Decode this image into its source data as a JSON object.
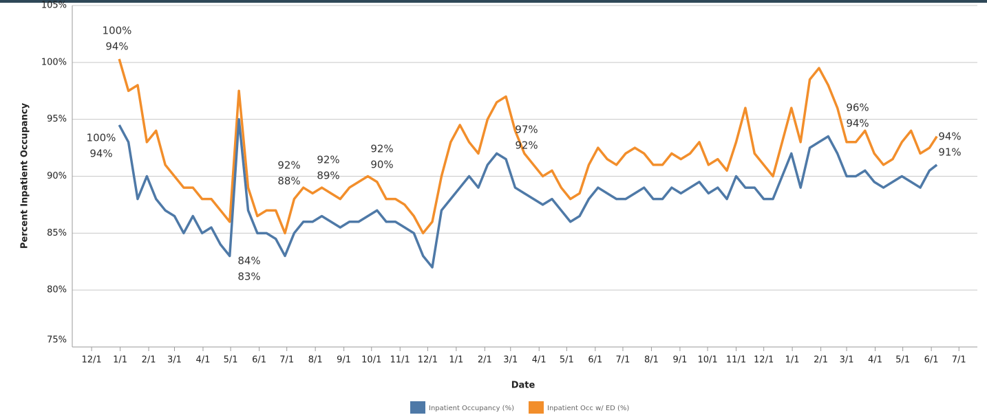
{
  "chart_data": {
    "type": "line",
    "x_label": "Date",
    "y_label": "Percent Inpatient Occupancy",
    "x": [
      30,
      40,
      50,
      60,
      70,
      80,
      90,
      100,
      110,
      120,
      130,
      140,
      150,
      160,
      170,
      180,
      190,
      200,
      210,
      220,
      230,
      240,
      250,
      260,
      270,
      280,
      290,
      300,
      310,
      320,
      330,
      340,
      350,
      360,
      370,
      380,
      390,
      400,
      410,
      420,
      430,
      440,
      450,
      460,
      470,
      480,
      490,
      500,
      510,
      520,
      530,
      540,
      550,
      560,
      570,
      580,
      590,
      600,
      610,
      620,
      630,
      640,
      650,
      660,
      670,
      680,
      690,
      700,
      710,
      720,
      730,
      740,
      750,
      760,
      770,
      780,
      790,
      800,
      810,
      820,
      830,
      840,
      850,
      860,
      870,
      880,
      890,
      900,
      910,
      918
    ],
    "series": [
      {
        "name": "Inpatient Occupancy (%)",
        "color": "#4e79a7",
        "values": [
          94.5,
          93,
          88,
          90,
          88,
          87,
          86.5,
          85,
          86.5,
          85,
          85.5,
          84,
          83,
          95,
          87,
          85,
          85,
          84.5,
          83,
          85,
          86,
          86,
          86.5,
          86,
          85.5,
          86,
          86,
          86.5,
          87,
          86,
          86,
          85.5,
          85,
          83,
          82,
          87,
          88,
          89,
          90,
          89,
          91,
          92,
          91.5,
          89,
          88.5,
          88,
          87.5,
          88,
          87,
          86,
          86.5,
          88,
          89,
          88.5,
          88,
          88,
          88.5,
          89,
          88,
          88,
          89,
          88.5,
          89,
          89.5,
          88.5,
          89,
          88,
          90,
          89,
          89,
          88,
          88,
          90,
          92,
          89,
          92.5,
          93,
          93.5,
          92,
          90,
          90,
          90.5,
          89.5,
          89,
          89.5,
          90,
          89.5,
          89,
          90.5,
          91
        ]
      },
      {
        "name": "Inpatient Occ w/ ED (%)",
        "color": "#f28e2b",
        "values": [
          100.3,
          97.5,
          98,
          93,
          94,
          91,
          90,
          89,
          89,
          88,
          88,
          87,
          86,
          97.5,
          89,
          86.5,
          87,
          87,
          85,
          88,
          89,
          88.5,
          89,
          88.5,
          88,
          89,
          89.5,
          90,
          89.5,
          88,
          88,
          87.5,
          86.5,
          85,
          86,
          90,
          93,
          94.5,
          93,
          92,
          95,
          96.5,
          97,
          94,
          92,
          91,
          90,
          90.5,
          89,
          88,
          88.5,
          91,
          92.5,
          91.5,
          91,
          92,
          92.5,
          92,
          91,
          91,
          92,
          91.5,
          92,
          93,
          91,
          91.5,
          90.5,
          93,
          96,
          92,
          91,
          90,
          93,
          96,
          93,
          98.5,
          99.5,
          98,
          96,
          93,
          93,
          94,
          92,
          91,
          91.5,
          93,
          94,
          92,
          92.5,
          93.5
        ]
      }
    ],
    "annotations": [
      [
        "100%",
        "94%"
      ],
      [
        "100%",
        "94%"
      ],
      [
        "84%",
        "83%"
      ],
      [
        "92%",
        "88%"
      ],
      [
        "92%",
        "89%"
      ],
      [
        "92%",
        "90%"
      ],
      [
        "97%",
        "92%"
      ],
      [
        "96%",
        "94%"
      ],
      [
        "94%",
        "91%"
      ]
    ],
    "xlim": [
      -21,
      962
    ],
    "xticks": [
      {
        "value": 0,
        "label": "12/1"
      },
      {
        "value": 31,
        "label": "1/1"
      },
      {
        "value": 62,
        "label": "2/1"
      },
      {
        "value": 90,
        "label": "3/1"
      },
      {
        "value": 121,
        "label": "4/1"
      },
      {
        "value": 151,
        "label": "5/1"
      },
      {
        "value": 182,
        "label": "6/1"
      },
      {
        "value": 212,
        "label": "7/1"
      },
      {
        "value": 243,
        "label": "8/1"
      },
      {
        "value": 274,
        "label": "9/1"
      },
      {
        "value": 304,
        "label": "10/1"
      },
      {
        "value": 335,
        "label": "11/1"
      },
      {
        "value": 365,
        "label": "12/1"
      },
      {
        "value": 396,
        "label": "1/1"
      },
      {
        "value": 427,
        "label": "2/1"
      },
      {
        "value": 455,
        "label": "3/1"
      },
      {
        "value": 486,
        "label": "4/1"
      },
      {
        "value": 516,
        "label": "5/1"
      },
      {
        "value": 547,
        "label": "6/1"
      },
      {
        "value": 577,
        "label": "7/1"
      },
      {
        "value": 608,
        "label": "8/1"
      },
      {
        "value": 639,
        "label": "9/1"
      },
      {
        "value": 669,
        "label": "10/1"
      },
      {
        "value": 700,
        "label": "11/1"
      },
      {
        "value": 730,
        "label": "12/1"
      },
      {
        "value": 761,
        "label": "1/1"
      },
      {
        "value": 792,
        "label": "2/1"
      },
      {
        "value": 820,
        "label": "3/1"
      },
      {
        "value": 851,
        "label": "4/1"
      },
      {
        "value": 881,
        "label": "5/1"
      },
      {
        "value": 912,
        "label": "6/1"
      },
      {
        "value": 942,
        "label": "7/1"
      }
    ],
    "ylim": [
      75,
      105
    ],
    "yticks": [
      {
        "value": 75,
        "label": "75%"
      },
      {
        "value": 80,
        "label": "80%"
      },
      {
        "value": 85,
        "label": "85%"
      },
      {
        "value": 90,
        "label": "90%"
      },
      {
        "value": 95,
        "label": "95%"
      },
      {
        "value": 100,
        "label": "100%"
      },
      {
        "value": 105,
        "label": "105%"
      }
    ],
    "grid": true
  }
}
